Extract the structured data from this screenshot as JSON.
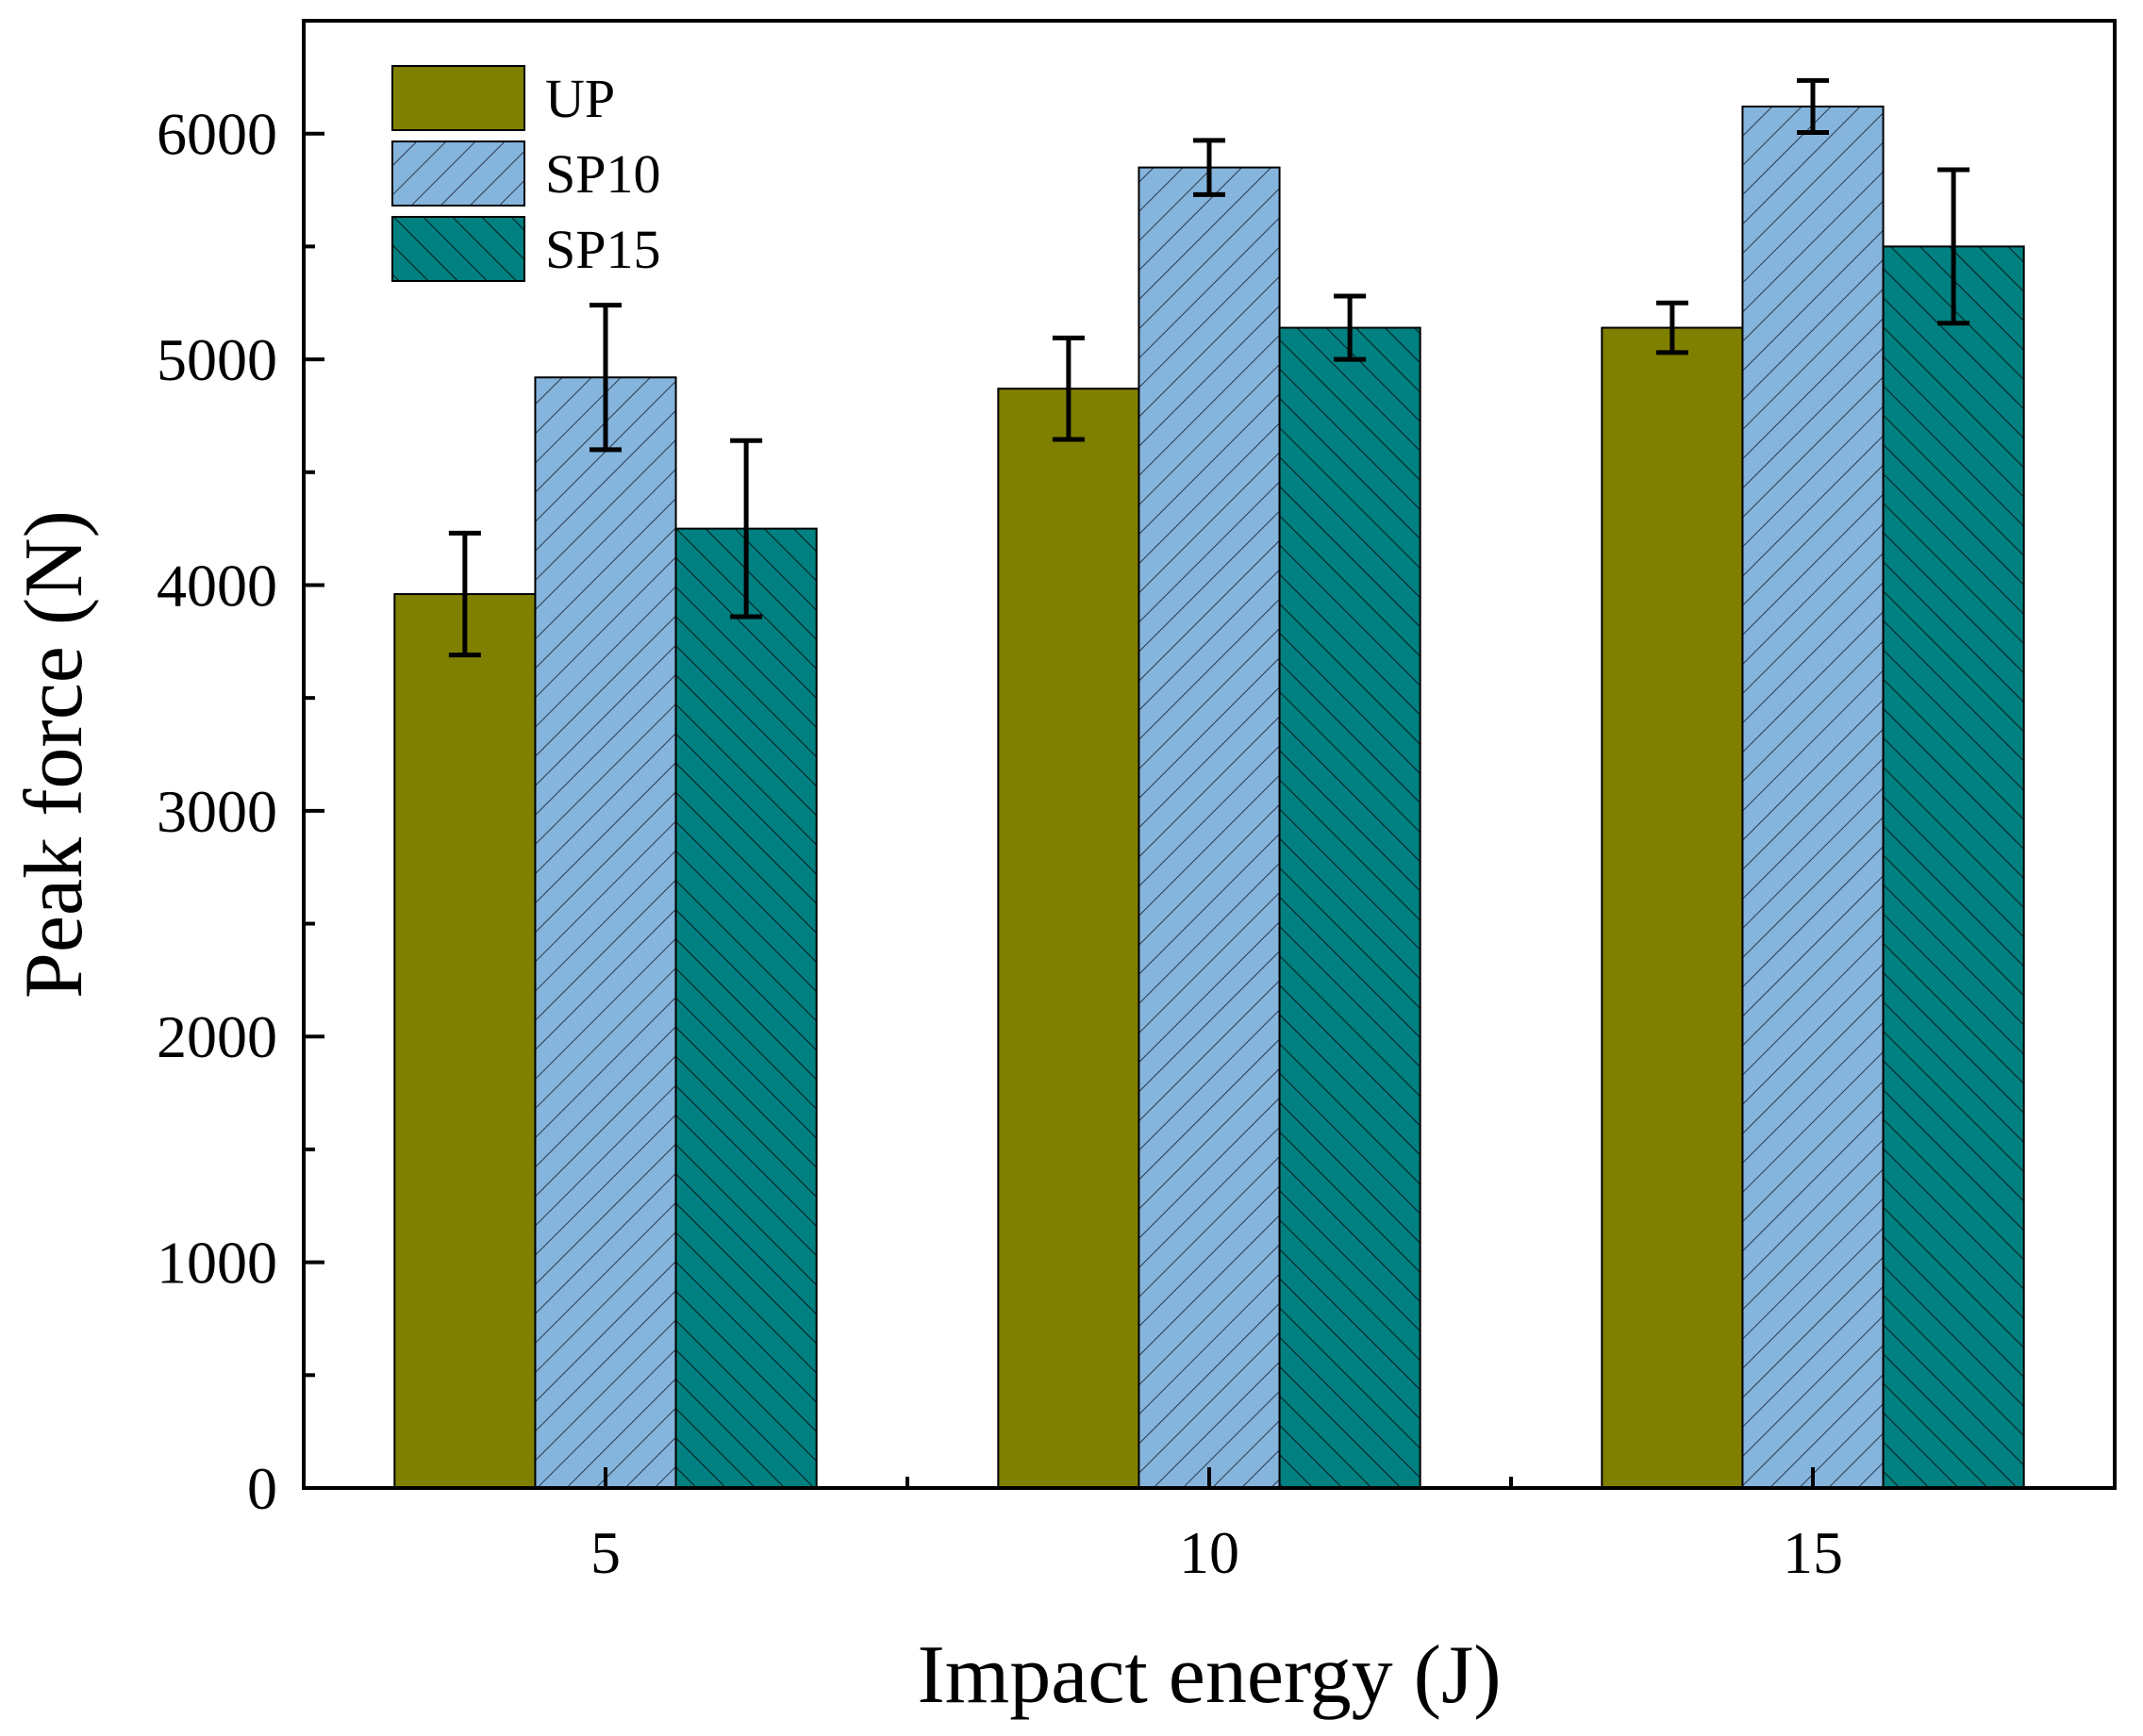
{
  "chart_data": {
    "type": "bar",
    "title": "",
    "xlabel": "Impact energy (J)",
    "ylabel": "Peak force (N)",
    "categories": [
      "5",
      "10",
      "15"
    ],
    "ylim": [
      0,
      6500
    ],
    "yticks": [
      0,
      1000,
      2000,
      3000,
      4000,
      5000,
      6000
    ],
    "yticks_labels": [
      "0",
      "1000",
      "2000",
      "3000",
      "4000",
      "5000",
      "6000"
    ],
    "grid": false,
    "legend_position": "top-left",
    "series": [
      {
        "name": "UP",
        "color": "#808000",
        "pattern": "solid",
        "values": [
          3960,
          4870,
          5140
        ],
        "errors": [
          270,
          225,
          110
        ]
      },
      {
        "name": "SP10",
        "color": "#85b4dc",
        "pattern": "forward-hatch",
        "values": [
          4920,
          5850,
          6120
        ],
        "errors": [
          320,
          120,
          115
        ]
      },
      {
        "name": "SP15",
        "color": "#008080",
        "pattern": "back-hatch",
        "values": [
          4250,
          5140,
          5500
        ],
        "errors": [
          390,
          140,
          340
        ]
      }
    ]
  }
}
